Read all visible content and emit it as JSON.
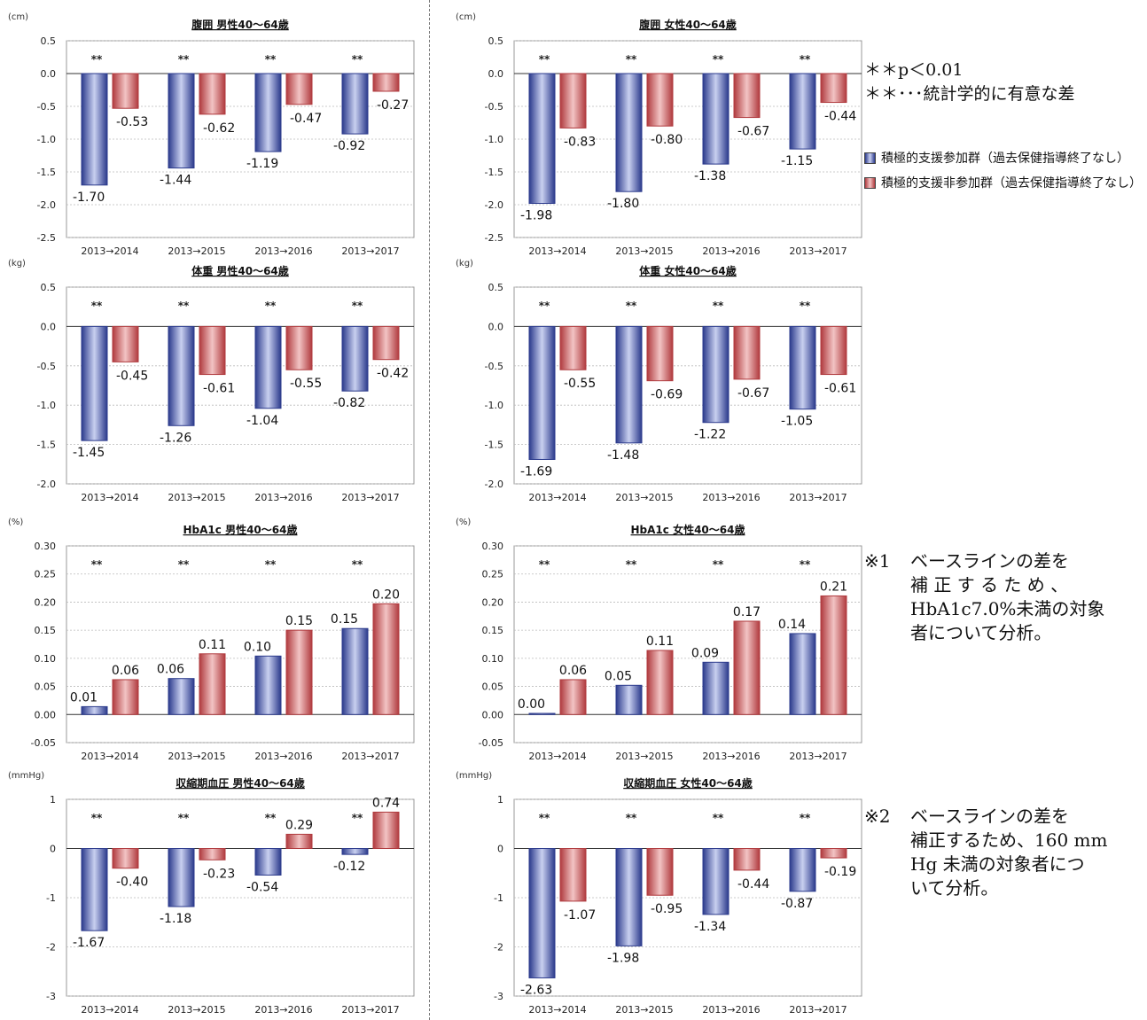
{
  "colors": {
    "participant": "#2b3a8c",
    "participant_light": "#c9d0f0",
    "nonparticipant": "#b03a3e",
    "nonparticipant_light": "#f2c4c4"
  },
  "significance": {
    "p_value": "＊＊p＜0.01",
    "meaning": "＊＊･･･統計学的に有意な差"
  },
  "legend": {
    "participant": "積極的支援参加群（過去保健指導終了なし）",
    "nonparticipant": "積極的支援非参加群（過去保健指導終了なし）"
  },
  "notes": {
    "note1": {
      "marker": "※1",
      "lines": [
        "ベースラインの差を",
        "補 正 す る た め 、",
        "HbA1c7.0%未満の対象",
        "者について分析。"
      ]
    },
    "note2": {
      "marker": "※2",
      "lines": [
        "ベースラインの差を",
        "補正するため、160 mm",
        "Hg 未満の対象者につ",
        "いて分析。"
      ]
    }
  },
  "chart_data": [
    {
      "type": "bar",
      "title": "腹囲 男性40～64歳",
      "unit": "(cm)",
      "categories": [
        "2013→2014",
        "2013→2015",
        "2013→2016",
        "2013→2017"
      ],
      "ylim": [
        -2.5,
        0.5
      ],
      "yticks": [
        "0.5",
        "0.0",
        "-0.5",
        "-1.0",
        "-1.5",
        "-2.0",
        "-2.5"
      ],
      "series": [
        {
          "values": [
            -1.7,
            -1.44,
            -1.19,
            -0.92
          ],
          "labels": [
            "-1.70",
            "-1.44",
            "-1.19",
            "-0.92"
          ]
        },
        {
          "values": [
            -0.53,
            -0.62,
            -0.47,
            -0.27
          ],
          "labels": [
            "-0.53",
            "-0.62",
            "-0.47",
            "-0.27"
          ]
        }
      ],
      "sig": "**"
    },
    {
      "type": "bar",
      "title": "腹囲 女性40～64歳",
      "unit": "(cm)",
      "categories": [
        "2013→2014",
        "2013→2015",
        "2013→2016",
        "2013→2017"
      ],
      "ylim": [
        -2.5,
        0.5
      ],
      "yticks": [
        "0.5",
        "0.0",
        "-0.5",
        "-1.0",
        "-1.5",
        "-2.0",
        "-2.5"
      ],
      "series": [
        {
          "values": [
            -1.98,
            -1.8,
            -1.38,
            -1.15
          ],
          "labels": [
            "-1.98",
            "-1.80",
            "-1.38",
            "-1.15"
          ]
        },
        {
          "values": [
            -0.83,
            -0.8,
            -0.67,
            -0.44
          ],
          "labels": [
            "-0.83",
            "-0.80",
            "-0.67",
            "-0.44"
          ]
        }
      ],
      "sig": "**"
    },
    {
      "type": "bar",
      "title": "体重 男性40～64歳",
      "unit": "(kg)",
      "categories": [
        "2013→2014",
        "2013→2015",
        "2013→2016",
        "2013→2017"
      ],
      "ylim": [
        -2.0,
        0.5
      ],
      "yticks": [
        "0.5",
        "0.0",
        "-0.5",
        "-1.0",
        "-1.5",
        "-2.0"
      ],
      "series": [
        {
          "values": [
            -1.45,
            -1.26,
            -1.04,
            -0.82
          ],
          "labels": [
            "-1.45",
            "-1.26",
            "-1.04",
            "-0.82"
          ]
        },
        {
          "values": [
            -0.45,
            -0.61,
            -0.55,
            -0.42
          ],
          "labels": [
            "-0.45",
            "-0.61",
            "-0.55",
            "-0.42"
          ]
        }
      ],
      "sig": "**"
    },
    {
      "type": "bar",
      "title": "体重 女性40～64歳",
      "unit": "(kg)",
      "categories": [
        "2013→2014",
        "2013→2015",
        "2013→2016",
        "2013→2017"
      ],
      "ylim": [
        -2.0,
        0.5
      ],
      "yticks": [
        "0.5",
        "0.0",
        "-0.5",
        "-1.0",
        "-1.5",
        "-2.0"
      ],
      "series": [
        {
          "values": [
            -1.69,
            -1.48,
            -1.22,
            -1.05
          ],
          "labels": [
            "-1.69",
            "-1.48",
            "-1.22",
            "-1.05"
          ]
        },
        {
          "values": [
            -0.55,
            -0.69,
            -0.67,
            -0.61
          ],
          "labels": [
            "-0.55",
            "-0.69",
            "-0.67",
            "-0.61"
          ]
        }
      ],
      "sig": "**"
    },
    {
      "type": "bar",
      "title": "HbA1c 男性40～64歳",
      "unit": "(%)",
      "categories": [
        "2013→2014",
        "2013→2015",
        "2013→2016",
        "2013→2017"
      ],
      "ylim": [
        -0.05,
        0.3
      ],
      "yticks": [
        "0.30",
        "0.25",
        "0.20",
        "0.15",
        "0.10",
        "0.05",
        "0.00",
        "-0.05"
      ],
      "series": [
        {
          "values": [
            0.014,
            0.064,
            0.104,
            0.153
          ],
          "labels": [
            "0.01",
            "0.06",
            "0.10",
            "0.15"
          ]
        },
        {
          "values": [
            0.062,
            0.108,
            0.15,
            0.197
          ],
          "labels": [
            "0.06",
            "0.11",
            "0.15",
            "0.20"
          ]
        }
      ],
      "sig": "**"
    },
    {
      "type": "bar",
      "title": "HbA1c 女性40～64歳",
      "unit": "(%)",
      "categories": [
        "2013→2014",
        "2013→2015",
        "2013→2016",
        "2013→2017"
      ],
      "ylim": [
        -0.05,
        0.3
      ],
      "yticks": [
        "0.30",
        "0.25",
        "0.20",
        "0.15",
        "0.10",
        "0.05",
        "0.00",
        "-0.05"
      ],
      "series": [
        {
          "values": [
            0.002,
            0.052,
            0.093,
            0.144
          ],
          "labels": [
            "0.00",
            "0.05",
            "0.09",
            "0.14"
          ]
        },
        {
          "values": [
            0.062,
            0.114,
            0.166,
            0.211
          ],
          "labels": [
            "0.06",
            "0.11",
            "0.17",
            "0.21"
          ]
        }
      ],
      "sig": "**"
    },
    {
      "type": "bar",
      "title": "収縮期血圧 男性40～64歳",
      "unit": "(mmHg)",
      "categories": [
        "2013→2014",
        "2013→2015",
        "2013→2016",
        "2013→2017"
      ],
      "ylim": [
        -3,
        1
      ],
      "yticks": [
        "1",
        "0",
        "-1",
        "-2",
        "-3"
      ],
      "series": [
        {
          "values": [
            -1.67,
            -1.18,
            -0.54,
            -0.12
          ],
          "labels": [
            "-1.67",
            "-1.18",
            "-0.54",
            "-0.12"
          ]
        },
        {
          "values": [
            -0.4,
            -0.23,
            0.29,
            0.74
          ],
          "labels": [
            "-0.40",
            "-0.23",
            "0.29",
            "0.74"
          ]
        }
      ],
      "sig": "**"
    },
    {
      "type": "bar",
      "title": "収縮期血圧 女性40～64歳",
      "unit": "(mmHg)",
      "categories": [
        "2013→2014",
        "2013→2015",
        "2013→2016",
        "2013→2017"
      ],
      "ylim": [
        -3,
        1
      ],
      "yticks": [
        "1",
        "0",
        "-1",
        "-2",
        "-3"
      ],
      "series": [
        {
          "values": [
            -2.63,
            -1.98,
            -1.34,
            -0.87
          ],
          "labels": [
            "-2.63",
            "-1.98",
            "-1.34",
            "-0.87"
          ]
        },
        {
          "values": [
            -1.07,
            -0.95,
            -0.44,
            -0.19
          ],
          "labels": [
            "-1.07",
            "-0.95",
            "-0.44",
            "-0.19"
          ]
        }
      ],
      "sig": "**"
    }
  ]
}
